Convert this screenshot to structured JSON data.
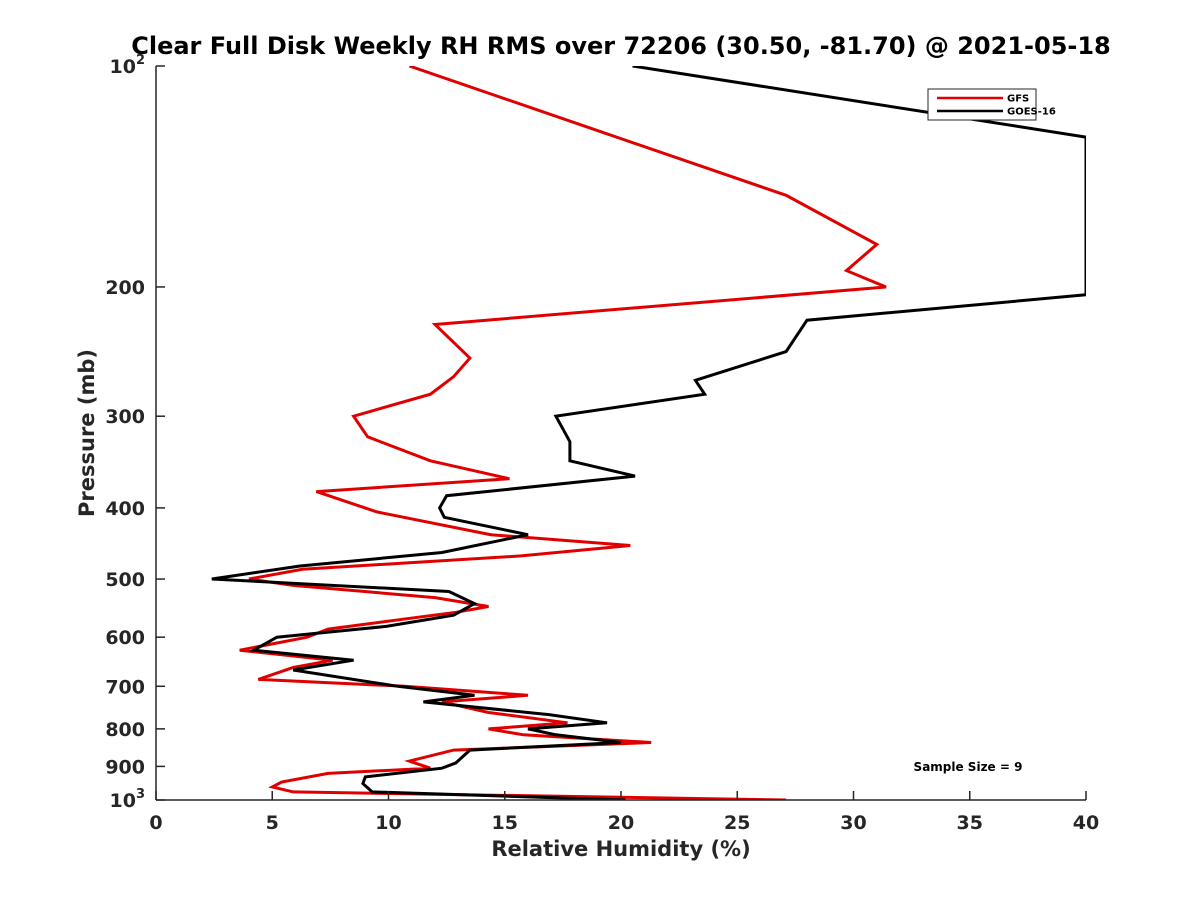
{
  "chart_data": {
    "type": "line",
    "title": "Clear Full Disk Weekly RH RMS over 72206 (30.50, -81.70) @ 2021-05-18",
    "xlabel": "Relative Humidity (%)",
    "ylabel": "Pressure (mb)",
    "xlim": [
      0,
      40
    ],
    "ylim": [
      100,
      1000
    ],
    "y_scale": "log",
    "y_reversed": true,
    "x_ticks": [
      "0",
      "5",
      "10",
      "15",
      "20",
      "25",
      "30",
      "35",
      "40"
    ],
    "y_ticks": [
      {
        "value": 100,
        "base": "10",
        "exp": "2"
      },
      {
        "value": 200,
        "label": "200"
      },
      {
        "value": 300,
        "label": "300"
      },
      {
        "value": 400,
        "label": "400"
      },
      {
        "value": 500,
        "label": "500"
      },
      {
        "value": 600,
        "label": "600"
      },
      {
        "value": 700,
        "label": "700"
      },
      {
        "value": 800,
        "label": "800"
      },
      {
        "value": 900,
        "label": "900"
      },
      {
        "value": 1000,
        "base": "10",
        "exp": "3"
      }
    ],
    "grid": false,
    "legend_position": "top-right",
    "annotation": "Sample Size = 9",
    "series": [
      {
        "name": "GFS",
        "color": "#e00000",
        "points": [
          [
            10.9,
            100
          ],
          [
            27.1,
            150
          ],
          [
            31.0,
            175
          ],
          [
            29.7,
            190
          ],
          [
            31.4,
            200
          ],
          [
            12.0,
            225
          ],
          [
            13.5,
            250
          ],
          [
            12.8,
            265
          ],
          [
            11.8,
            280
          ],
          [
            8.5,
            300
          ],
          [
            9.1,
            320
          ],
          [
            11.8,
            345
          ],
          [
            15.2,
            365
          ],
          [
            6.9,
            380
          ],
          [
            9.5,
            405
          ],
          [
            14.4,
            435
          ],
          [
            20.4,
            450
          ],
          [
            15.7,
            465
          ],
          [
            6.3,
            485
          ],
          [
            4.0,
            500
          ],
          [
            5.9,
            510
          ],
          [
            12.0,
            530
          ],
          [
            14.3,
            545
          ],
          [
            12.9,
            555
          ],
          [
            7.4,
            585
          ],
          [
            6.5,
            600
          ],
          [
            3.6,
            625
          ],
          [
            7.6,
            645
          ],
          [
            5.9,
            660
          ],
          [
            4.4,
            685
          ],
          [
            10.7,
            700
          ],
          [
            16.0,
            720
          ],
          [
            12.3,
            735
          ],
          [
            14.3,
            760
          ],
          [
            17.7,
            785
          ],
          [
            14.3,
            800
          ],
          [
            15.8,
            815
          ],
          [
            21.3,
            835
          ],
          [
            12.8,
            855
          ],
          [
            10.9,
            885
          ],
          [
            11.8,
            905
          ],
          [
            7.4,
            920
          ],
          [
            5.4,
            945
          ],
          [
            5.0,
            960
          ],
          [
            5.9,
            975
          ],
          [
            27.1,
            1000
          ]
        ]
      },
      {
        "name": "GOES-16",
        "color": "#000000",
        "points": [
          [
            20.5,
            100
          ],
          [
            40.0,
            125
          ],
          [
            40.0,
            205
          ],
          [
            28.0,
            222
          ],
          [
            27.1,
            245
          ],
          [
            23.2,
            268
          ],
          [
            23.6,
            280
          ],
          [
            17.2,
            300
          ],
          [
            17.8,
            325
          ],
          [
            17.8,
            345
          ],
          [
            20.6,
            362
          ],
          [
            12.5,
            385
          ],
          [
            12.2,
            400
          ],
          [
            12.4,
            412
          ],
          [
            16.0,
            435
          ],
          [
            12.3,
            460
          ],
          [
            6.2,
            480
          ],
          [
            2.4,
            500
          ],
          [
            12.6,
            520
          ],
          [
            13.7,
            540
          ],
          [
            12.8,
            560
          ],
          [
            9.9,
            580
          ],
          [
            5.2,
            600
          ],
          [
            4.2,
            625
          ],
          [
            8.5,
            645
          ],
          [
            5.9,
            665
          ],
          [
            10.4,
            700
          ],
          [
            13.7,
            720
          ],
          [
            11.5,
            735
          ],
          [
            16.9,
            765
          ],
          [
            19.4,
            785
          ],
          [
            16.0,
            800
          ],
          [
            17.2,
            815
          ],
          [
            20.0,
            835
          ],
          [
            13.5,
            855
          ],
          [
            12.9,
            890
          ],
          [
            12.3,
            905
          ],
          [
            9.0,
            930
          ],
          [
            8.9,
            950
          ],
          [
            9.3,
            975
          ],
          [
            20.2,
            1000
          ]
        ]
      }
    ]
  }
}
